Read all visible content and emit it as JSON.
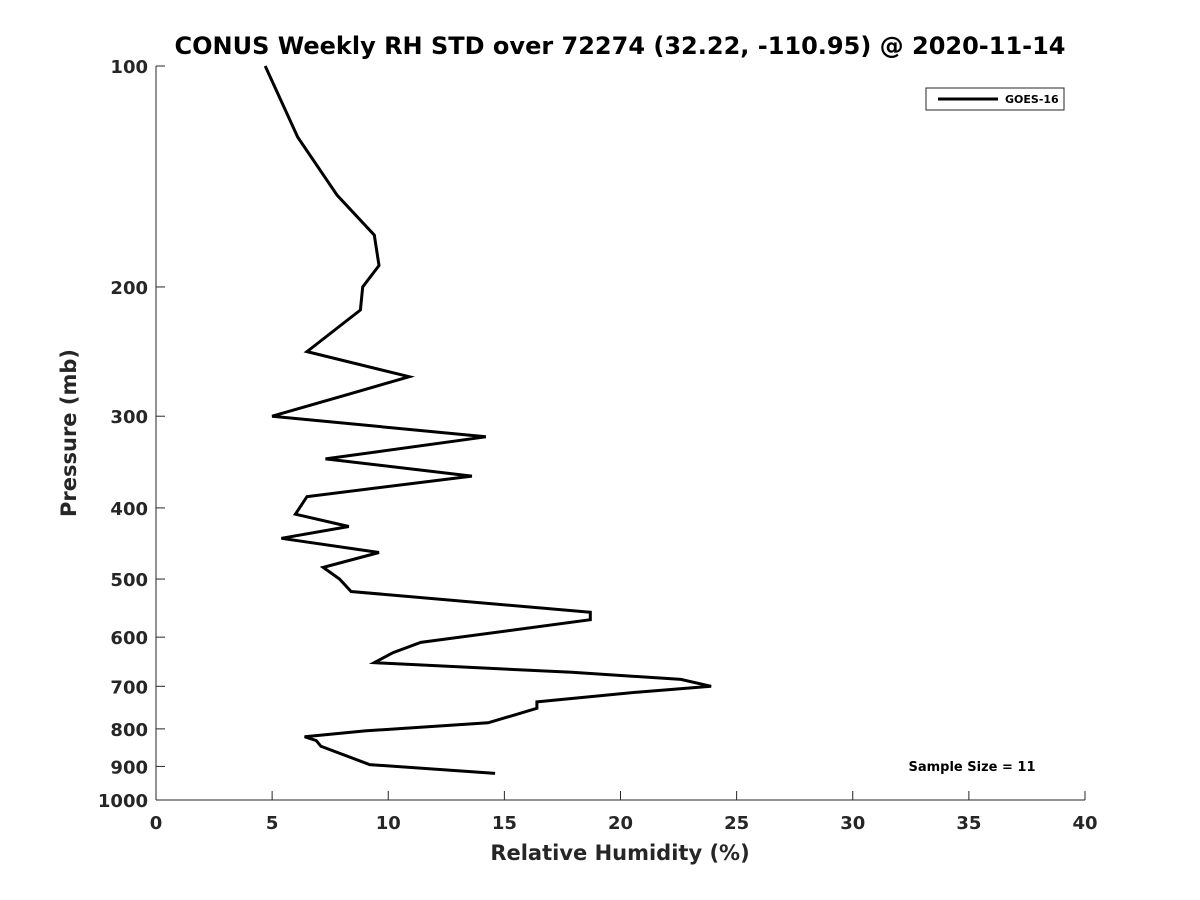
{
  "chart_data": {
    "type": "line",
    "title": "CONUS Weekly RH STD over 72274 (32.22, -110.95) @ 2020-11-14",
    "xlabel": "Relative Humidity (%)",
    "ylabel": "Pressure (mb)",
    "xlim": [
      0,
      40
    ],
    "ylim": [
      100,
      1000
    ],
    "yscale": "log",
    "yreversed": true,
    "grid": false,
    "legend_position": "top-right",
    "x_ticks": [
      0,
      5,
      10,
      15,
      20,
      25,
      30,
      35,
      40
    ],
    "x_tick_labels": [
      "0",
      "5",
      "10",
      "15",
      "20",
      "25",
      "30",
      "35",
      "40"
    ],
    "y_ticks": [
      100,
      200,
      300,
      400,
      500,
      600,
      700,
      800,
      900,
      1000
    ],
    "y_tick_labels": [
      "100",
      "200",
      "300",
      "400",
      "500",
      "600",
      "700",
      "800",
      "900",
      "1000"
    ],
    "series": [
      {
        "name": "GOES-16",
        "color": "#000000",
        "x": [
          4.7,
          6.1,
          7.8,
          9.4,
          9.6,
          8.9,
          8.8,
          6.5,
          10.9,
          8.3,
          5.0,
          14.2,
          7.3,
          13.6,
          6.5,
          6.0,
          8.3,
          5.4,
          9.6,
          7.2,
          7.9,
          8.4,
          18.7,
          18.7,
          11.4,
          10.2,
          9.4,
          17.9,
          22.6,
          23.9,
          20.7,
          16.4,
          16.4,
          14.3,
          9.0,
          6.4,
          6.9,
          7.1,
          9.2,
          14.6
        ],
        "y": [
          100,
          125,
          150,
          170,
          187,
          200,
          215,
          245,
          265,
          280,
          300,
          320,
          343,
          362,
          386,
          408,
          424,
          440,
          460,
          482,
          500,
          520,
          555,
          568,
          610,
          630,
          650,
          670,
          685,
          700,
          713,
          735,
          750,
          785,
          805,
          820,
          830,
          845,
          895,
          920
        ]
      }
    ],
    "annotations": [
      "Sample Size = 11"
    ]
  }
}
